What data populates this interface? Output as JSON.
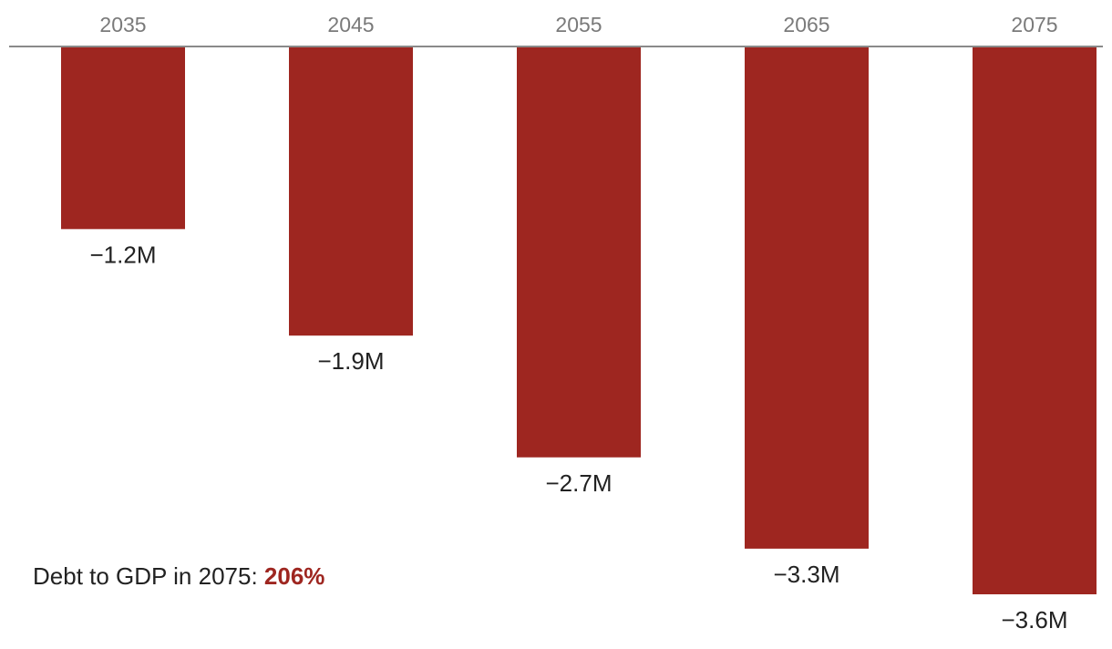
{
  "chart_data": {
    "type": "bar",
    "categories": [
      "2035",
      "2045",
      "2055",
      "2065",
      "2075"
    ],
    "values": [
      -1.2,
      -1.9,
      -2.7,
      -3.3,
      -3.6
    ],
    "value_labels": [
      "−1.2M",
      "−1.9M",
      "−2.7M",
      "−3.3M",
      "−3.6M"
    ],
    "title": "",
    "xlabel": "",
    "ylabel": "",
    "ylim": [
      -3.6,
      0
    ],
    "x_axis_position": "top",
    "grid": false,
    "legend": "none",
    "bar_color": "#9e2620",
    "axis_color": "#8a8a8a"
  },
  "annotation": {
    "text": "Debt to GDP in 2075: ",
    "highlight": "206%",
    "highlight_color": "#9e2620"
  }
}
